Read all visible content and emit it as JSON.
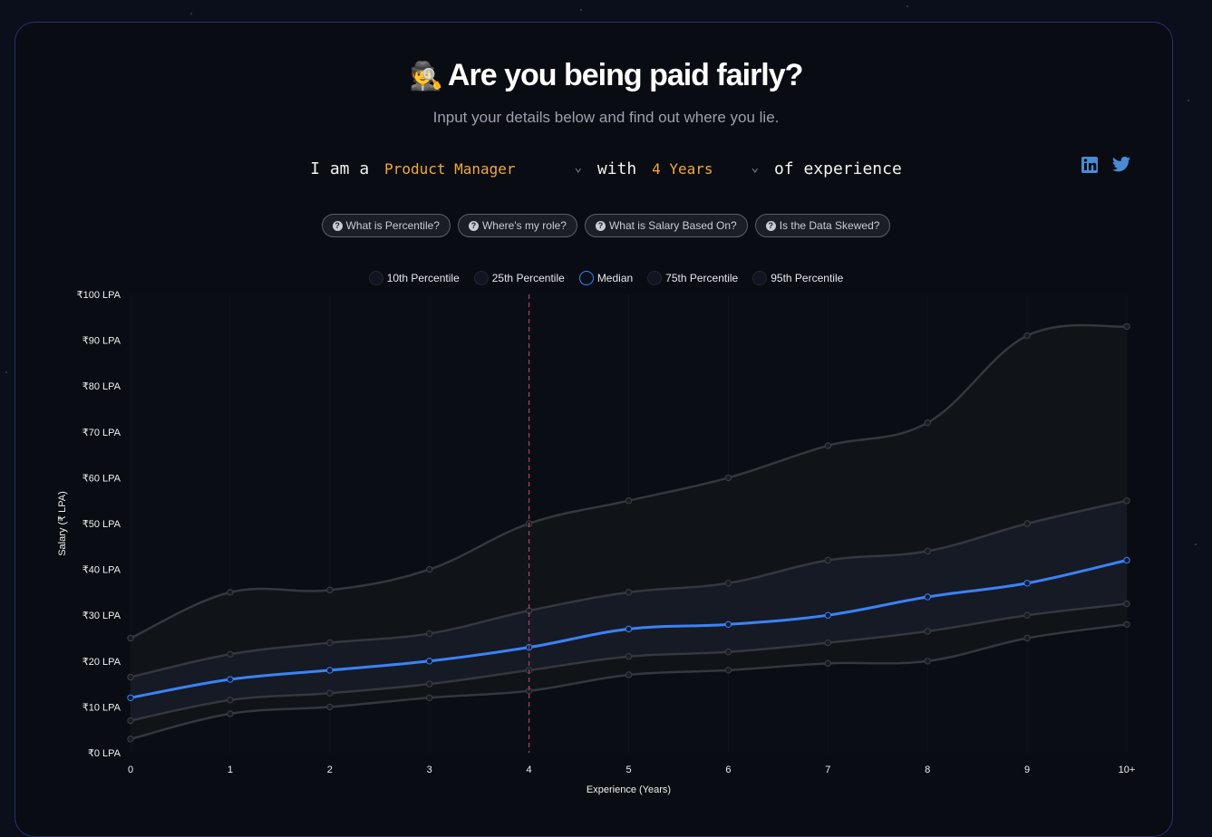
{
  "header": {
    "emoji": "🕵️",
    "title": "Are you being paid fairly?",
    "subtitle": "Input your details below and find out where you lie."
  },
  "form": {
    "prefix": "I am a",
    "role": "Product Manager",
    "middle": "with",
    "years": "4 Years",
    "suffix": "of experience"
  },
  "social": {
    "linkedin_icon": "linkedin-icon",
    "twitter_icon": "twitter-icon"
  },
  "faq": [
    "What is Percentile?",
    "Where's my role?",
    "What is Salary Based On?",
    "Is the Data Skewed?"
  ],
  "legend": [
    "10th Percentile",
    "25th Percentile",
    "Median",
    "75th Percentile",
    "95th Percentile"
  ],
  "colors": {
    "accent": "#3b82f6",
    "selection": "#f0a840",
    "marker": "#a04060"
  },
  "chart_data": {
    "type": "line",
    "xlabel": "Experience (Years)",
    "ylabel": "Salary (₹ LPA)",
    "categories": [
      "0",
      "1",
      "2",
      "3",
      "4",
      "5",
      "6",
      "7",
      "8",
      "9",
      "10+"
    ],
    "ylim": [
      0,
      100
    ],
    "yticks": [
      "₹0 LPA",
      "₹10 LPA",
      "₹20 LPA",
      "₹30 LPA",
      "₹40 LPA",
      "₹50 LPA",
      "₹60 LPA",
      "₹70 LPA",
      "₹80 LPA",
      "₹90 LPA",
      "₹100 LPA"
    ],
    "highlight_x": "4",
    "series": [
      {
        "name": "10th Percentile",
        "values": [
          3,
          8.5,
          10,
          12,
          13.5,
          17,
          18,
          19.5,
          20,
          25,
          28
        ]
      },
      {
        "name": "25th Percentile",
        "values": [
          7,
          11.5,
          13,
          15,
          18,
          21,
          22,
          24,
          26.5,
          30,
          32.5
        ]
      },
      {
        "name": "Median",
        "values": [
          12,
          16,
          18,
          20,
          23,
          27,
          28,
          30,
          34,
          37,
          42
        ]
      },
      {
        "name": "75th Percentile",
        "values": [
          16.5,
          21.5,
          24,
          26,
          31,
          35,
          37,
          42,
          44,
          50,
          55
        ]
      },
      {
        "name": "95th Percentile",
        "values": [
          25,
          35,
          35.5,
          40,
          50,
          55,
          60,
          67,
          72,
          91,
          93
        ]
      }
    ]
  }
}
